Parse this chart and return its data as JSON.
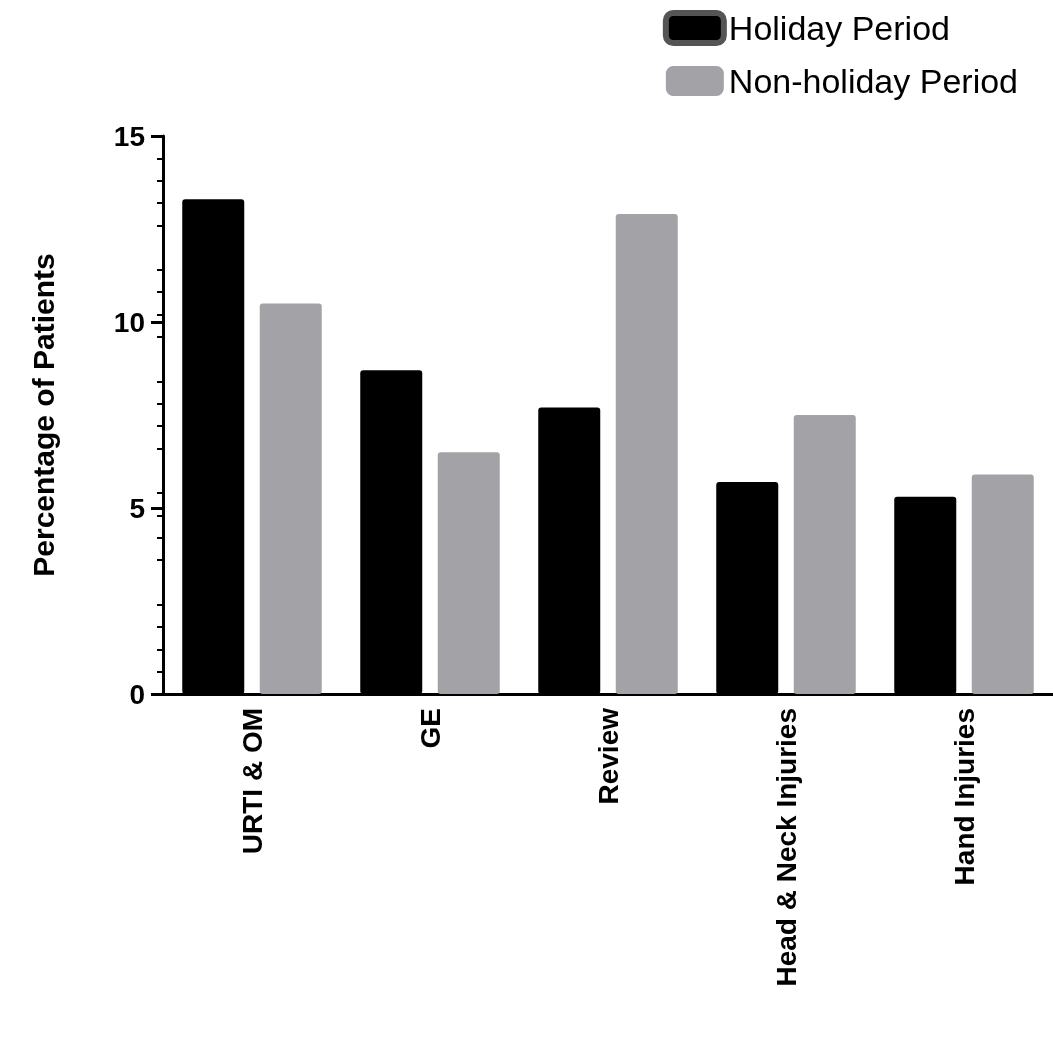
{
  "chart_data": {
    "type": "bar",
    "ylabel": "Percentage of Patients",
    "categories": [
      "URTI & OM",
      "GE",
      "Review",
      "Head & Neck Injuries",
      "Hand Injuries"
    ],
    "series": [
      {
        "name": "Holiday Period",
        "color": "#000000",
        "values": [
          13.3,
          8.7,
          7.7,
          5.7,
          5.3
        ]
      },
      {
        "name": "Non-holiday Period",
        "color": "#a3a3a7",
        "values": [
          10.5,
          6.5,
          12.9,
          7.5,
          5.9
        ]
      }
    ],
    "ylim": [
      0,
      15
    ],
    "yticks": [
      0,
      5,
      10,
      15
    ],
    "grid": false,
    "legend": "top right"
  }
}
